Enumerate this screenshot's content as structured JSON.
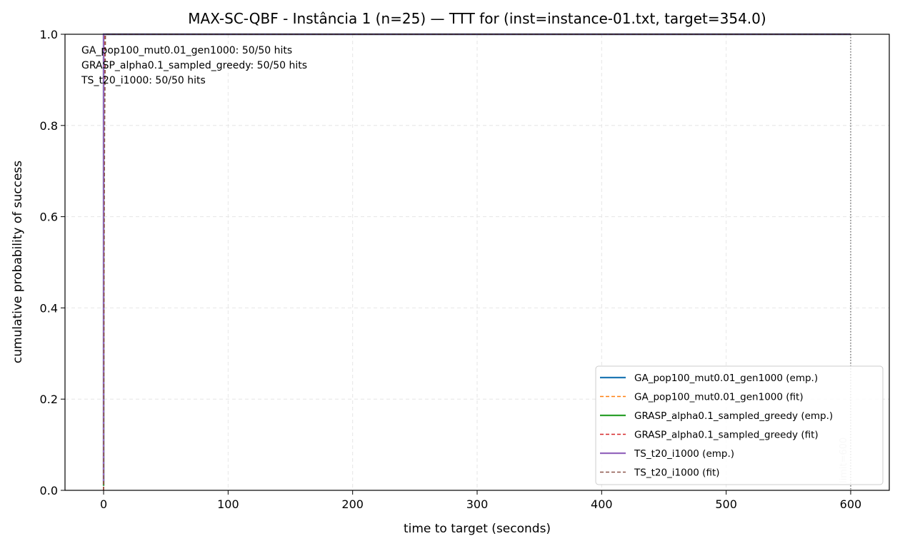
{
  "chart_data": {
    "type": "line",
    "title": "MAX-SC-QBF - Instância 1 (n=25) — TTT for (inst=instance-01.txt, target=354.0)",
    "xlabel": "time to target (seconds)",
    "ylabel": "cumulative probability of success",
    "xlim": [
      -31,
      631
    ],
    "ylim": [
      0,
      1.0
    ],
    "xticks": [
      0,
      100,
      200,
      300,
      400,
      500,
      600
    ],
    "yticks": [
      0.0,
      0.2,
      0.4,
      0.6,
      0.8,
      1.0
    ],
    "xtick_labels": [
      "0",
      "100",
      "200",
      "300",
      "400",
      "500",
      "600"
    ],
    "ytick_labels": [
      "0.0",
      "0.2",
      "0.4",
      "0.6",
      "0.8",
      "1.0"
    ],
    "grid": true,
    "legend_position": "lower-right",
    "annotations": [
      "GA_pop100_mut0.01_gen1000: 50/50 hits",
      "GRASP_alpha0.1_sampled_greedy: 50/50 hits",
      "TS_t20_i1000: 50/50 hits"
    ],
    "limit_line": {
      "x": 600,
      "label": "limit=600"
    },
    "series": [
      {
        "name": "GA_pop100_mut0.01_gen1000 (emp.)",
        "style": "solid",
        "color": "#1f77b4",
        "x": [
          0.0,
          0.0,
          0.0,
          0.0,
          600
        ],
        "y": [
          0.01,
          0.3,
          0.6,
          1.0,
          1.0
        ]
      },
      {
        "name": "GA_pop100_mut0.01_gen1000 (fit)",
        "style": "dashed",
        "color": "#ff7f0e",
        "x": [
          0.0,
          0.1,
          0.3,
          1.0,
          600
        ],
        "y": [
          0.0,
          0.4,
          0.8,
          1.0,
          1.0
        ]
      },
      {
        "name": "GRASP_alpha0.1_sampled_greedy (emp.)",
        "style": "solid",
        "color": "#2ca02c",
        "x": [
          0.0,
          0.0,
          0.0,
          0.0,
          600
        ],
        "y": [
          0.01,
          0.3,
          0.6,
          1.0,
          1.0
        ]
      },
      {
        "name": "GRASP_alpha0.1_sampled_greedy (fit)",
        "style": "dashed",
        "color": "#d62728",
        "x": [
          0.0,
          0.2,
          0.5,
          1.2,
          600
        ],
        "y": [
          0.0,
          0.4,
          0.8,
          1.0,
          1.0
        ]
      },
      {
        "name": "TS_t20_i1000 (emp.)",
        "style": "solid",
        "color": "#9467bd",
        "x": [
          0.0,
          0.0,
          0.0,
          0.0,
          600
        ],
        "y": [
          0.02,
          0.3,
          0.6,
          1.0,
          1.0
        ]
      },
      {
        "name": "TS_t20_i1000 (fit)",
        "style": "dashed",
        "color": "#8c564b",
        "x": [
          0.0,
          0.3,
          0.8,
          1.5,
          600
        ],
        "y": [
          0.0,
          0.4,
          0.8,
          1.0,
          1.0
        ]
      }
    ]
  }
}
